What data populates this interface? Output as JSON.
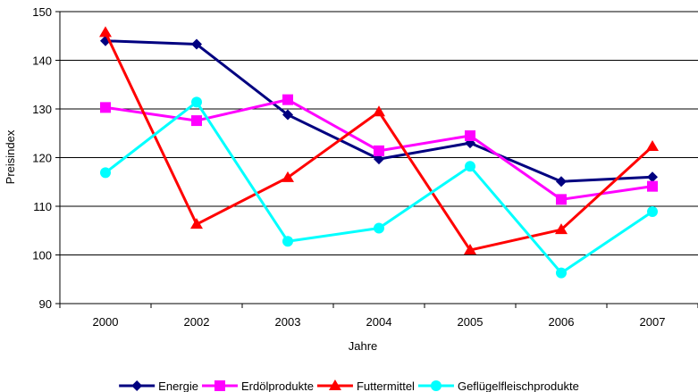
{
  "chart_data": {
    "type": "line",
    "categories": [
      "2000",
      "2002",
      "2003",
      "2004",
      "2005",
      "2006",
      "2007"
    ],
    "xlabel": "Jahre",
    "ylabel": "Preisindex",
    "ylim": [
      90,
      150
    ],
    "yticks": [
      90,
      100,
      110,
      120,
      130,
      140,
      150
    ],
    "grid": "horizontal",
    "legend_position": "bottom",
    "series": [
      {
        "name": "Energie",
        "color": "#000080",
        "marker": "diamond",
        "values": [
          144.0,
          143.3,
          128.8,
          119.7,
          123.0,
          115.1,
          116.0
        ]
      },
      {
        "name": "Erdölprodukte",
        "color": "#FF00FF",
        "marker": "square",
        "values": [
          130.3,
          127.6,
          131.9,
          121.4,
          124.5,
          111.4,
          114.1
        ]
      },
      {
        "name": "Futtermittel",
        "color": "#FF0000",
        "marker": "triangle",
        "values": [
          145.7,
          106.3,
          115.9,
          129.4,
          101.0,
          105.2,
          122.3
        ]
      },
      {
        "name": "Geflügelfleischprodukte",
        "color": "#00FFFF",
        "marker": "circle",
        "values": [
          116.9,
          131.4,
          102.8,
          105.5,
          118.2,
          96.3,
          108.9
        ]
      }
    ]
  }
}
